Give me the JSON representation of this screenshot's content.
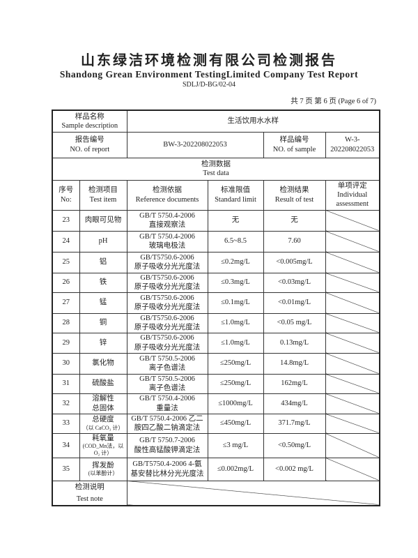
{
  "header": {
    "title_cn": "山东绿洁环境检测有限公司检测报告",
    "title_en": "Shandong Grean Environment TestingLimited Company Test Report",
    "form_code": "SDLJ/D-BG/02-04",
    "page_info": "共 7 页  第 6 页  (Page 6 of 7)"
  },
  "sample": {
    "desc_label_cn": "样品名称",
    "desc_label_en": "Sample description",
    "desc_value": "生活饮用水水样",
    "report_label_cn": "报告编号",
    "report_label_en": "NO. of report",
    "report_value": "BW-3-202208022053",
    "sample_no_label_cn": "样品编号",
    "sample_no_label_en": "NO. of sample",
    "sample_no_value": "W-3-202208022053"
  },
  "test_data": {
    "label_cn": "检测数据",
    "label_en": "Test data"
  },
  "columns": [
    {
      "cn": "序号",
      "en": "No:"
    },
    {
      "cn": "检测项目",
      "en": "Test item"
    },
    {
      "cn": "检测依据",
      "en": "Reference documents"
    },
    {
      "cn": "标准限值",
      "en": "Standard limit"
    },
    {
      "cn": "检测结果",
      "en": "Result of test"
    },
    {
      "cn": "单项评定",
      "en": "Individual assessment"
    }
  ],
  "rows": [
    {
      "no": "23",
      "item": "肉眼可见物",
      "item_sub": "",
      "ref1": "GB/T 5750.4-2006",
      "ref2": "直接观察法",
      "limit": "无",
      "result": "无"
    },
    {
      "no": "24",
      "item": "pH",
      "item_sub": "",
      "ref1": "GB/T 5750.4-2006",
      "ref2": "玻璃电极法",
      "limit": "6.5~8.5",
      "result": "7.60"
    },
    {
      "no": "25",
      "item": "铝",
      "item_sub": "",
      "ref1": "GB/T5750.6-2006",
      "ref2": "原子吸收分光光度法",
      "limit": "≤0.2mg/L",
      "result": "<0.005mg/L"
    },
    {
      "no": "26",
      "item": "铁",
      "item_sub": "",
      "ref1": "GB/T5750.6-2006",
      "ref2": "原子吸收分光光度法",
      "limit": "≤0.3mg/L",
      "result": "<0.03mg/L"
    },
    {
      "no": "27",
      "item": "锰",
      "item_sub": "",
      "ref1": "GB/T5750.6-2006",
      "ref2": "原子吸收分光光度法",
      "limit": "≤0.1mg/L",
      "result": "<0.01mg/L"
    },
    {
      "no": "28",
      "item": "铜",
      "item_sub": "",
      "ref1": "GB/T5750.6-2006",
      "ref2": "原子吸收分光光度法",
      "limit": "≤1.0mg/L",
      "result": "<0.05 mg/L"
    },
    {
      "no": "29",
      "item": "锌",
      "item_sub": "",
      "ref1": "GB/T5750.6-2006",
      "ref2": "原子吸收分光光度法",
      "limit": "≤1.0mg/L",
      "result": "0.13mg/L"
    },
    {
      "no": "30",
      "item": "氯化物",
      "item_sub": "",
      "ref1": "GB/T 5750.5-2006",
      "ref2": "离子色谱法",
      "limit": "≤250mg/L",
      "result": "14.8mg/L"
    },
    {
      "no": "31",
      "item": "硫酸盐",
      "item_sub": "",
      "ref1": "GB/T 5750.5-2006",
      "ref2": "离子色谱法",
      "limit": "≤250mg/L",
      "result": "162mg/L"
    },
    {
      "no": "32",
      "item": "溶解性",
      "item_sub": "总固体",
      "ref1": "GB/T 5750.4-2006",
      "ref2": "重量法",
      "limit": "≤1000mg/L",
      "result": "434mg/L"
    },
    {
      "no": "33",
      "item": "总硬度",
      "item_sub": "（以 CaCO₃ 计）",
      "ref1": "GB/T 5750.4-2006 乙二",
      "ref2": "胺四乙酸二钠滴定法",
      "limit": "≤450mg/L",
      "result": "371.7mg/L"
    },
    {
      "no": "34",
      "item": "耗氧量",
      "item_sub": "(COD_Mn法，以 O₂ 计）",
      "ref1": "GB/T 5750.7-2006",
      "ref2": "酸性高锰酸钾滴定法",
      "limit": "≤3 mg/L",
      "result": "<0.50mg/L"
    },
    {
      "no": "35",
      "item": "挥发酚",
      "item_sub": "(以苯酚计）",
      "ref1": "GB/T5750.4-2006 4-氨",
      "ref2": "基安替比林分光光度法",
      "limit": "≤0.002mg/L",
      "result": "<0.002 mg/L"
    }
  ],
  "note": {
    "label_cn": "检测说明",
    "label_en": "Test note"
  }
}
